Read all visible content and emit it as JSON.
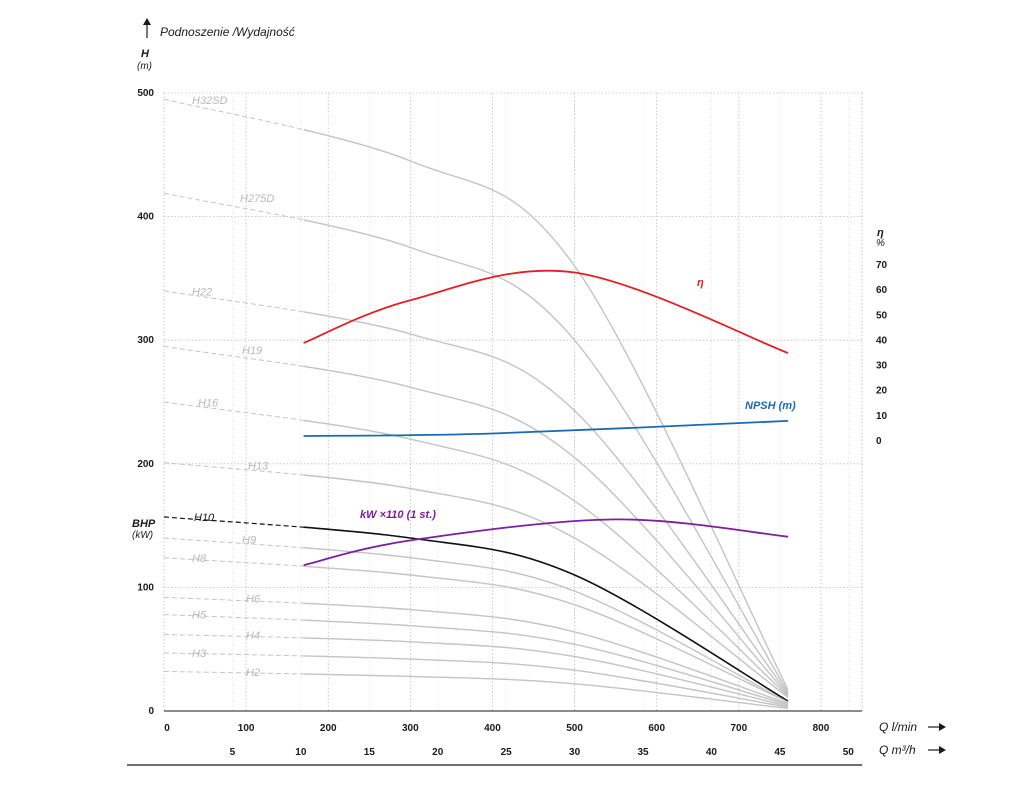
{
  "chart_data": {
    "type": "line",
    "title": "Podnoszenie /Wydajność",
    "x": {
      "label": "Q l/min",
      "range": [
        0,
        850
      ],
      "ticks": [
        0,
        100,
        200,
        300,
        400,
        500,
        600,
        700,
        800
      ]
    },
    "x2": {
      "label": "Q m³/h",
      "ticks": [
        5,
        10,
        15,
        20,
        25,
        30,
        35,
        40,
        45,
        50
      ]
    },
    "y_left": {
      "label": "H",
      "unit": "(m)",
      "range": [
        0,
        500
      ],
      "ticks": [
        0,
        100,
        200,
        300,
        400,
        500
      ]
    },
    "y_bhp": {
      "label": "BHP",
      "unit": "(kW)"
    },
    "y_right": {
      "label": "η",
      "unit": "%",
      "ticks": [
        0,
        10,
        20,
        30,
        40,
        50,
        60,
        70
      ]
    },
    "grid": true,
    "pump_curves": [
      {
        "name": "H32SD",
        "active": false,
        "q": [
          0,
          300,
          500,
          760
        ],
        "h": [
          495,
          445,
          360,
          17
        ]
      },
      {
        "name": "H275D",
        "active": false,
        "q": [
          0,
          300,
          500,
          760
        ],
        "h": [
          419,
          375,
          300,
          15
        ]
      },
      {
        "name": "H22",
        "active": false,
        "q": [
          0,
          300,
          500,
          760
        ],
        "h": [
          340,
          305,
          243,
          14
        ]
      },
      {
        "name": "H19",
        "active": false,
        "q": [
          0,
          300,
          500,
          760
        ],
        "h": [
          295,
          262,
          205,
          13
        ]
      },
      {
        "name": "H16",
        "active": false,
        "q": [
          0,
          300,
          500,
          760
        ],
        "h": [
          250,
          220,
          170,
          12
        ]
      },
      {
        "name": "H13",
        "active": false,
        "q": [
          0,
          300,
          500,
          760
        ],
        "h": [
          201,
          180,
          140,
          11
        ]
      },
      {
        "name": "H10",
        "active": true,
        "q": [
          0,
          300,
          500,
          760
        ],
        "h": [
          157,
          140,
          110,
          8
        ]
      },
      {
        "name": "H9",
        "active": false,
        "q": [
          0,
          300,
          500,
          760
        ],
        "h": [
          140,
          124,
          97,
          7
        ]
      },
      {
        "name": "H8",
        "active": false,
        "q": [
          0,
          300,
          500,
          760
        ],
        "h": [
          124,
          110,
          86,
          7
        ]
      },
      {
        "name": "H6",
        "active": false,
        "q": [
          0,
          300,
          500,
          760
        ],
        "h": [
          92,
          82,
          64,
          6
        ]
      },
      {
        "name": "H5",
        "active": false,
        "q": [
          0,
          300,
          500,
          760
        ],
        "h": [
          78,
          69,
          54,
          5
        ]
      },
      {
        "name": "H4",
        "active": false,
        "q": [
          0,
          300,
          500,
          760
        ],
        "h": [
          62,
          56,
          44,
          4
        ]
      },
      {
        "name": "H3",
        "active": false,
        "q": [
          0,
          300,
          500,
          760
        ],
        "h": [
          47,
          42,
          33,
          3
        ]
      },
      {
        "name": "H2",
        "active": false,
        "q": [
          0,
          300,
          500,
          760
        ],
        "h": [
          32,
          28,
          22,
          2
        ]
      }
    ],
    "series": [
      {
        "name": "η",
        "color": "#e31e24",
        "axis": "right",
        "x": [
          170,
          300,
          500,
          760
        ],
        "y": [
          39,
          56,
          67,
          35
        ]
      },
      {
        "name": "NPSH (m)",
        "color": "#1a6ab4",
        "axis": "right",
        "x": [
          170,
          400,
          760
        ],
        "y": [
          2,
          3,
          8
        ]
      },
      {
        "name": "kW ×110 (1 st.)",
        "color": "#7b1fa2",
        "axis": "left",
        "x": [
          170,
          300,
          550,
          760
        ],
        "y": [
          118,
          138,
          155,
          141
        ]
      }
    ]
  }
}
